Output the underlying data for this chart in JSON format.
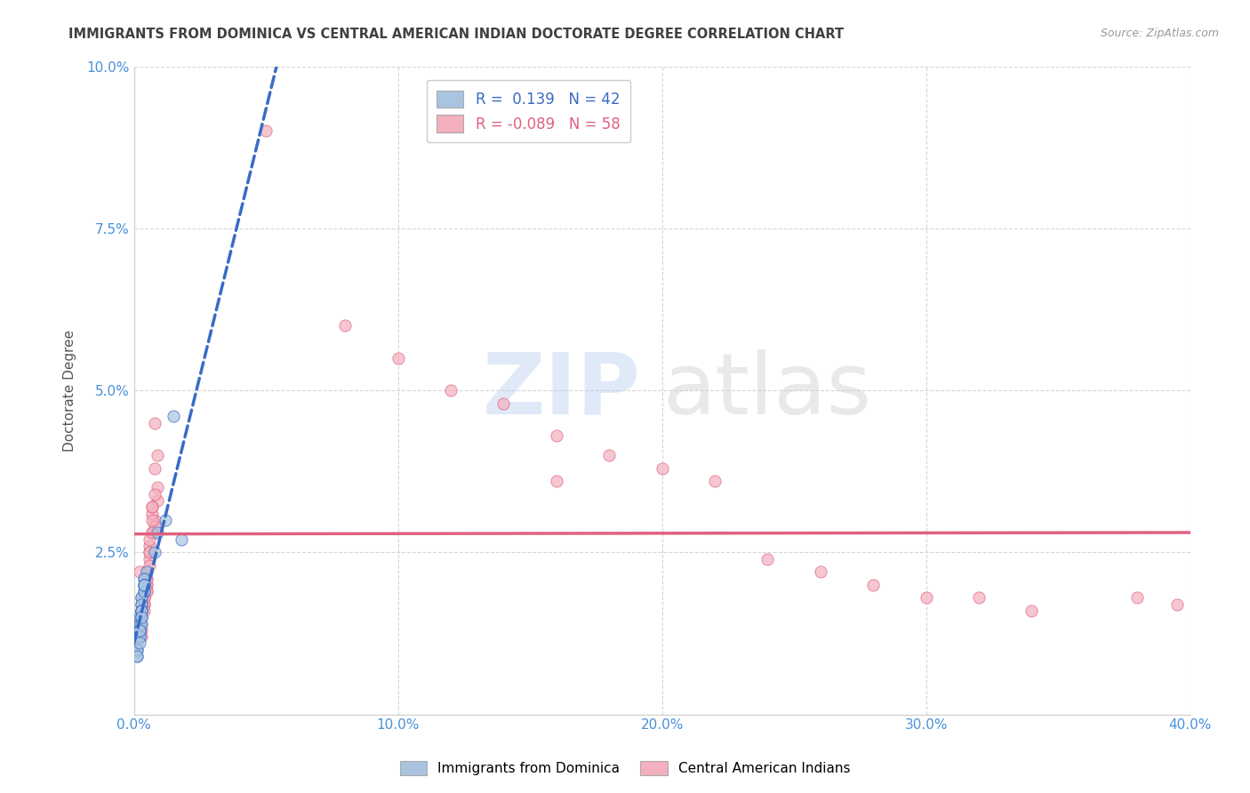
{
  "title": "IMMIGRANTS FROM DOMINICA VS CENTRAL AMERICAN INDIAN DOCTORATE DEGREE CORRELATION CHART",
  "source": "Source: ZipAtlas.com",
  "ylabel": "Doctorate Degree",
  "xlabel": "",
  "xlim": [
    0.0,
    0.4
  ],
  "ylim": [
    0.0,
    0.1
  ],
  "xticks": [
    0.0,
    0.1,
    0.2,
    0.3,
    0.4
  ],
  "yticks": [
    0.0,
    0.025,
    0.05,
    0.075,
    0.1
  ],
  "xticklabels": [
    "0.0%",
    "10.0%",
    "20.0%",
    "30.0%",
    "40.0%"
  ],
  "yticklabels": [
    "",
    "2.5%",
    "5.0%",
    "7.5%",
    "10.0%"
  ],
  "blue_R": 0.139,
  "blue_N": 42,
  "pink_R": -0.089,
  "pink_N": 58,
  "blue_color": "#a8c4e0",
  "pink_color": "#f4b0be",
  "blue_line_color": "#3a6bc4",
  "pink_line_color": "#e06080",
  "background_color": "#ffffff",
  "grid_color": "#cccccc",
  "title_color": "#404040",
  "axis_label_color": "#4a90d9",
  "blue_scatter_x": [
    0.003,
    0.004,
    0.002,
    0.005,
    0.001,
    0.003,
    0.004,
    0.002,
    0.001,
    0.003,
    0.004,
    0.002,
    0.003,
    0.001,
    0.004,
    0.002,
    0.003,
    0.002,
    0.004,
    0.003,
    0.001,
    0.002,
    0.004,
    0.003,
    0.002,
    0.004,
    0.003,
    0.002,
    0.001,
    0.003,
    0.004,
    0.002,
    0.003,
    0.001,
    0.002,
    0.004,
    0.003,
    0.008,
    0.009,
    0.012,
    0.015,
    0.018
  ],
  "blue_scatter_y": [
    0.018,
    0.02,
    0.015,
    0.022,
    0.012,
    0.017,
    0.021,
    0.014,
    0.011,
    0.016,
    0.019,
    0.013,
    0.018,
    0.01,
    0.021,
    0.014,
    0.017,
    0.013,
    0.02,
    0.016,
    0.009,
    0.012,
    0.02,
    0.016,
    0.013,
    0.019,
    0.015,
    0.012,
    0.01,
    0.014,
    0.02,
    0.013,
    0.016,
    0.009,
    0.011,
    0.02,
    0.015,
    0.025,
    0.028,
    0.03,
    0.046,
    0.027
  ],
  "pink_scatter_x": [
    0.002,
    0.004,
    0.006,
    0.003,
    0.008,
    0.005,
    0.007,
    0.003,
    0.009,
    0.005,
    0.006,
    0.004,
    0.007,
    0.003,
    0.008,
    0.005,
    0.009,
    0.004,
    0.006,
    0.007,
    0.003,
    0.005,
    0.008,
    0.004,
    0.006,
    0.003,
    0.007,
    0.005,
    0.009,
    0.006,
    0.004,
    0.007,
    0.003,
    0.008,
    0.005,
    0.006,
    0.004,
    0.007,
    0.008,
    0.005,
    0.05,
    0.08,
    0.1,
    0.12,
    0.14,
    0.16,
    0.18,
    0.2,
    0.22,
    0.26,
    0.3,
    0.34,
    0.38,
    0.16,
    0.24,
    0.28,
    0.32,
    0.395
  ],
  "pink_scatter_y": [
    0.022,
    0.018,
    0.025,
    0.016,
    0.03,
    0.02,
    0.028,
    0.015,
    0.033,
    0.021,
    0.026,
    0.017,
    0.031,
    0.014,
    0.029,
    0.019,
    0.035,
    0.018,
    0.024,
    0.032,
    0.013,
    0.02,
    0.038,
    0.017,
    0.027,
    0.015,
    0.03,
    0.022,
    0.04,
    0.025,
    0.016,
    0.028,
    0.012,
    0.034,
    0.019,
    0.023,
    0.018,
    0.032,
    0.045,
    0.021,
    0.09,
    0.06,
    0.055,
    0.05,
    0.048,
    0.043,
    0.04,
    0.038,
    0.036,
    0.022,
    0.018,
    0.016,
    0.018,
    0.036,
    0.024,
    0.02,
    0.018,
    0.017
  ]
}
